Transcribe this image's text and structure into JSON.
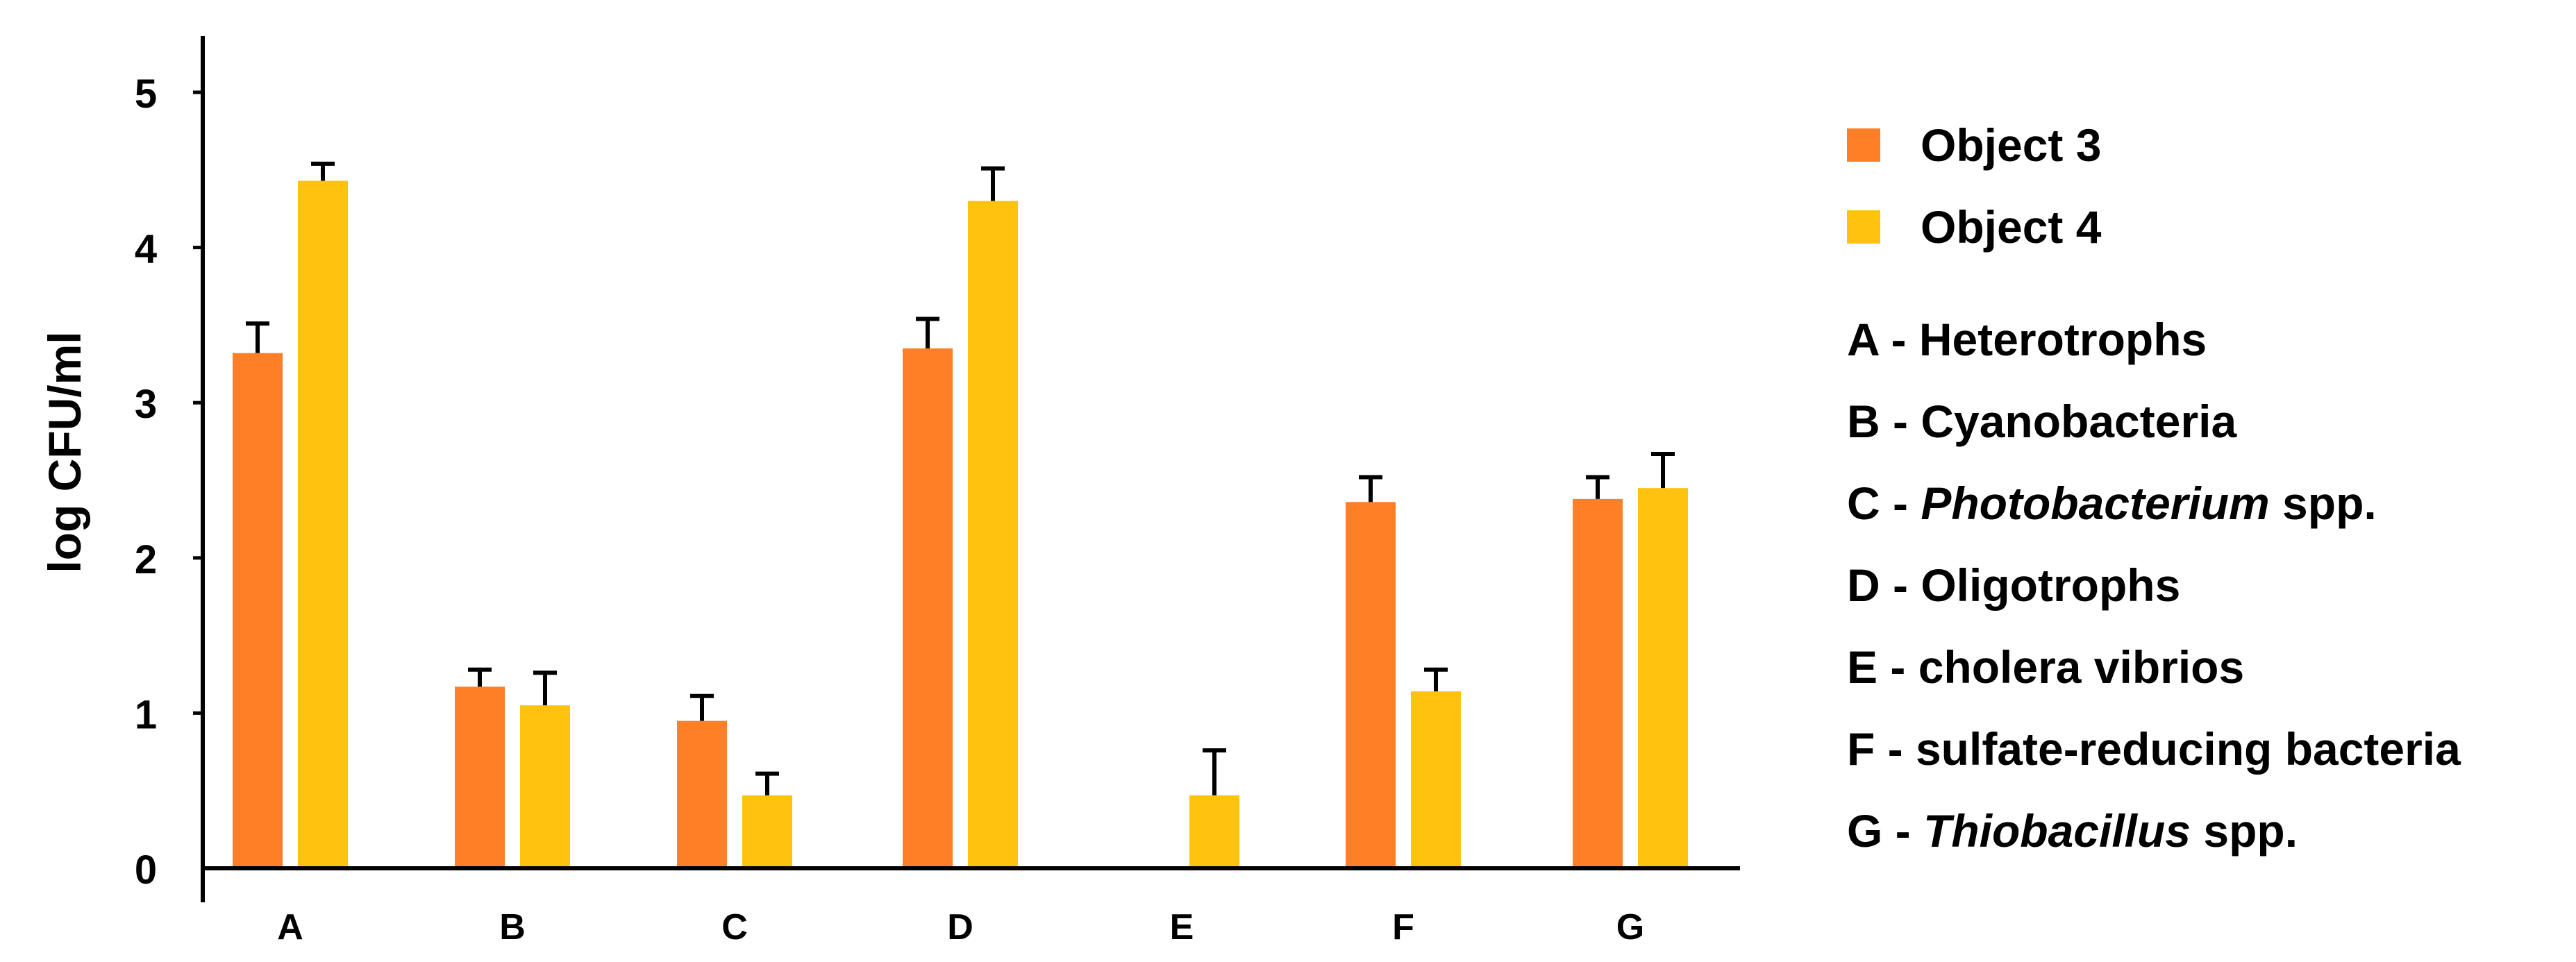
{
  "chart_data": {
    "type": "bar",
    "categories": [
      "A",
      "B",
      "C",
      "D",
      "E",
      "F",
      "G"
    ],
    "ylabel": "log CFU/ml",
    "xlabel": "",
    "ylim": [
      0,
      5
    ],
    "yticks": [
      0,
      1,
      2,
      3,
      4,
      5
    ],
    "grid": false,
    "legend_position": "right",
    "series": [
      {
        "name": "Object 3",
        "color": "#FF7F27",
        "values": [
          3.32,
          1.17,
          0.95,
          3.35,
          null,
          2.36,
          2.38
        ],
        "errors": [
          0.19,
          0.11,
          0.16,
          0.19,
          null,
          0.16,
          0.14
        ]
      },
      {
        "name": "Object 4",
        "color": "#FFC20E",
        "values": [
          4.43,
          1.05,
          0.47,
          4.3,
          0.47,
          1.14,
          2.45
        ],
        "errors": [
          0.11,
          0.21,
          0.14,
          0.21,
          0.29,
          0.14,
          0.22
        ]
      }
    ],
    "category_legend": [
      {
        "key": "A",
        "prefix": "A - ",
        "name": "Heterotrophs",
        "suffix": "",
        "italic": false
      },
      {
        "key": "B",
        "prefix": "B - ",
        "name": "Cyanobacteria",
        "suffix": "",
        "italic": false
      },
      {
        "key": "C",
        "prefix": "C - ",
        "name": "Photobacterium",
        "suffix": " spp.",
        "italic": true
      },
      {
        "key": "D",
        "prefix": "D - ",
        "name": "Oligotrophs",
        "suffix": "",
        "italic": false
      },
      {
        "key": "E",
        "prefix": "E - ",
        "name": "cholera vibrios",
        "suffix": "",
        "italic": false
      },
      {
        "key": "F",
        "prefix": "F - ",
        "name": "sulfate-reducing bacteria",
        "suffix": "",
        "italic": false
      },
      {
        "key": "G",
        "prefix": "G - ",
        "name": "Thiobacillus",
        "suffix": " spp.",
        "italic": true
      }
    ]
  }
}
